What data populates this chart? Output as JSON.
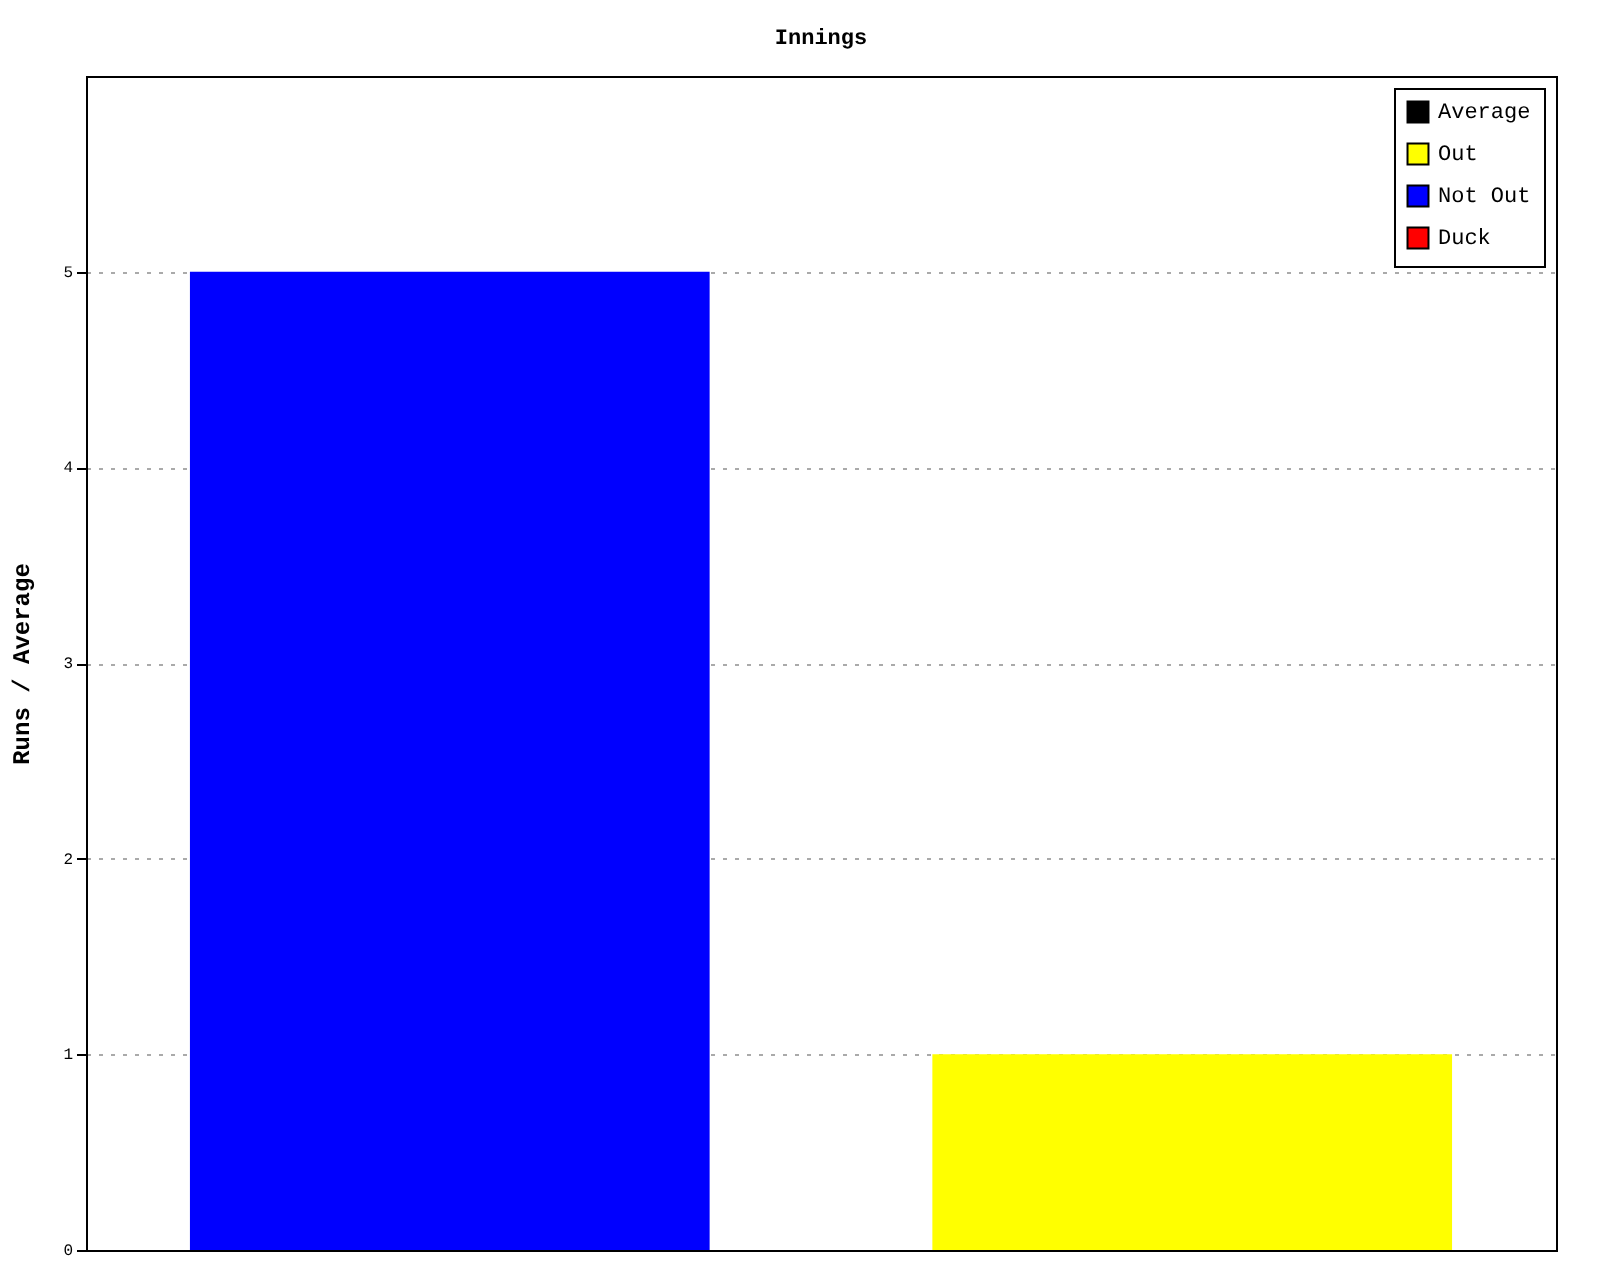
{
  "chart_data": {
    "type": "bar",
    "title": "Innings",
    "ylabel": "Runs / Average",
    "categories": [
      null,
      null
    ],
    "series": [
      {
        "name": "Average",
        "color": "#000000",
        "values": [
          null,
          null
        ]
      },
      {
        "name": "Out",
        "color": "#ffff00",
        "values": [
          null,
          1
        ]
      },
      {
        "name": "Not Out",
        "color": "#0000ff",
        "values": [
          5,
          null
        ]
      },
      {
        "name": "Duck",
        "color": "#ff0000",
        "values": [
          null,
          null
        ]
      }
    ],
    "ylim": [
      0,
      6
    ],
    "yticks": [
      0,
      1,
      2,
      3,
      4,
      5
    ],
    "grid": "y",
    "legend": "top right",
    "tick_labels": "y"
  }
}
